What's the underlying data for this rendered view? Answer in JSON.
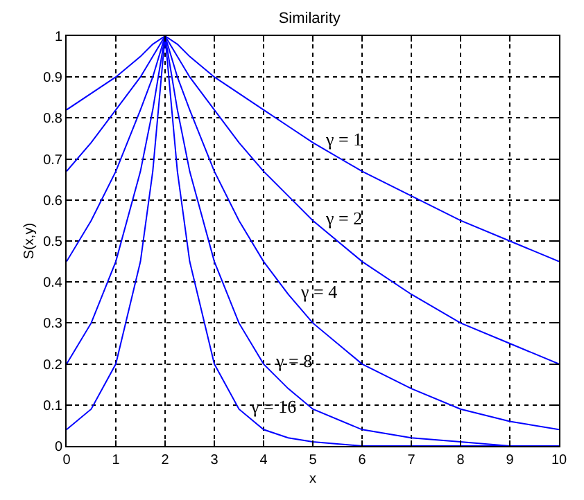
{
  "chart_data": {
    "type": "line",
    "title": "Similarity",
    "xlabel": "x",
    "ylabel": "S(x,y)",
    "x": [
      0,
      0.5,
      1,
      1.5,
      1.75,
      2,
      2.25,
      2.5,
      3,
      3.5,
      4,
      4.5,
      5,
      6,
      7,
      8,
      9,
      10
    ],
    "series": [
      {
        "color": "#0000ff",
        "values": [
          0.82,
          0.86,
          0.9,
          0.95,
          0.98,
          1,
          0.98,
          0.95,
          0.9,
          0.86,
          0.82,
          0.78,
          0.74,
          0.67,
          0.61,
          0.55,
          0.5,
          0.45
        ]
      },
      {
        "color": "#0000ff",
        "values": [
          0.67,
          0.74,
          0.82,
          0.9,
          0.95,
          1,
          0.95,
          0.9,
          0.82,
          0.74,
          0.67,
          0.61,
          0.55,
          0.45,
          0.37,
          0.3,
          0.25,
          0.2
        ]
      },
      {
        "color": "#0000ff",
        "values": [
          0.45,
          0.55,
          0.67,
          0.82,
          0.9,
          1,
          0.9,
          0.82,
          0.67,
          0.55,
          0.45,
          0.37,
          0.3,
          0.2,
          0.14,
          0.09,
          0.06,
          0.04
        ]
      },
      {
        "color": "#0000ff",
        "values": [
          0.2,
          0.3,
          0.45,
          0.67,
          0.82,
          1,
          0.82,
          0.67,
          0.45,
          0.3,
          0.2,
          0.14,
          0.09,
          0.04,
          0.02,
          0.01,
          0.0,
          0.0
        ]
      },
      {
        "color": "#0000ff",
        "values": [
          0.04,
          0.09,
          0.2,
          0.45,
          0.67,
          1,
          0.67,
          0.45,
          0.2,
          0.09,
          0.04,
          0.02,
          0.01,
          0.0,
          0.0,
          0.0,
          0.0,
          0.0
        ]
      }
    ],
    "annotations": [
      {
        "text": "γ = 1",
        "x": 5,
        "y": 0.74
      },
      {
        "text": "γ = 2",
        "x": 5,
        "y": 0.55
      },
      {
        "text": "γ = 4",
        "x": 4.5,
        "y": 0.37
      },
      {
        "text": "γ = 8",
        "x": 4,
        "y": 0.2
      },
      {
        "text": "γ = 16",
        "x": 3.5,
        "y": 0.09
      }
    ],
    "xlim": [
      0,
      10
    ],
    "xticks": [
      0,
      1,
      2,
      3,
      4,
      5,
      6,
      7,
      8,
      9,
      10
    ],
    "ylim": [
      0,
      1
    ],
    "yticks": [
      0,
      0.1,
      0.2,
      0.3,
      0.4,
      0.5,
      0.6,
      0.7,
      0.8,
      0.9,
      1
    ],
    "grid": true,
    "marker": "none",
    "line_style": "solid"
  }
}
